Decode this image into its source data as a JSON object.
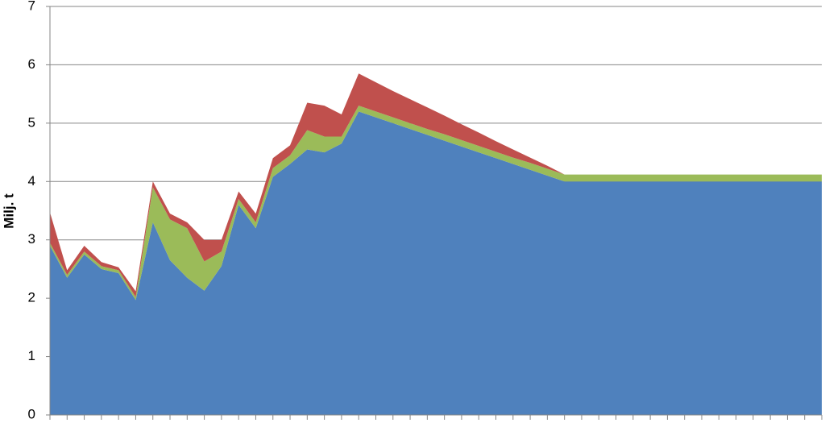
{
  "chart_data": {
    "type": "stacked_area",
    "y_label": "Milj. t",
    "categories": [
      null,
      null,
      null,
      null,
      null,
      null,
      null,
      null,
      null,
      null,
      null,
      null,
      null,
      null,
      null,
      null,
      null,
      null,
      null,
      null,
      null,
      null,
      null,
      null,
      null,
      null,
      null,
      null,
      null,
      null,
      null,
      null,
      null,
      null,
      null,
      null,
      null,
      null,
      null,
      null,
      null,
      null,
      null,
      null,
      null,
      null
    ],
    "series": [
      {
        "color": "#4f81bd",
        "values": [
          2.9,
          2.35,
          2.75,
          2.5,
          2.43,
          1.97,
          3.3,
          2.65,
          2.35,
          2.13,
          2.55,
          3.6,
          3.2,
          4.08,
          4.3,
          4.55,
          4.5,
          4.65,
          5.2,
          5.1,
          5.0,
          4.9,
          4.8,
          4.7,
          4.6,
          4.5,
          4.4,
          4.3,
          4.2,
          4.1,
          4.0,
          4.0,
          4.0,
          4.0,
          4.0,
          4.0,
          4.0,
          4.0,
          4.0,
          4.0,
          4.0,
          4.0,
          4.0,
          4.0,
          4.0,
          4.0
        ]
      },
      {
        "color": "#9bbb59",
        "values": [
          0.05,
          0.05,
          0.05,
          0.05,
          0.05,
          0.05,
          0.6,
          0.7,
          0.85,
          0.5,
          0.25,
          0.1,
          0.1,
          0.15,
          0.15,
          0.33,
          0.27,
          0.12,
          0.1,
          0.1,
          0.1,
          0.1,
          0.1,
          0.11,
          0.11,
          0.11,
          0.11,
          0.11,
          0.12,
          0.12,
          0.12,
          0.12,
          0.12,
          0.12,
          0.12,
          0.12,
          0.12,
          0.12,
          0.12,
          0.12,
          0.12,
          0.12,
          0.12,
          0.12,
          0.12,
          0.12
        ]
      },
      {
        "color": "#c0504d",
        "values": [
          0.52,
          0.08,
          0.1,
          0.07,
          0.05,
          0.1,
          0.1,
          0.1,
          0.1,
          0.37,
          0.2,
          0.13,
          0.15,
          0.17,
          0.17,
          0.47,
          0.53,
          0.38,
          0.55,
          0.5,
          0.45,
          0.41,
          0.37,
          0.32,
          0.27,
          0.23,
          0.18,
          0.14,
          0.09,
          0.05,
          0,
          0,
          0,
          0,
          0,
          0,
          0,
          0,
          0,
          0,
          0,
          0,
          0,
          0,
          0,
          0
        ]
      }
    ],
    "ylim": [
      0,
      7
    ],
    "yticks": [
      0,
      1,
      2,
      3,
      4,
      5,
      6,
      7
    ],
    "grid": true
  }
}
